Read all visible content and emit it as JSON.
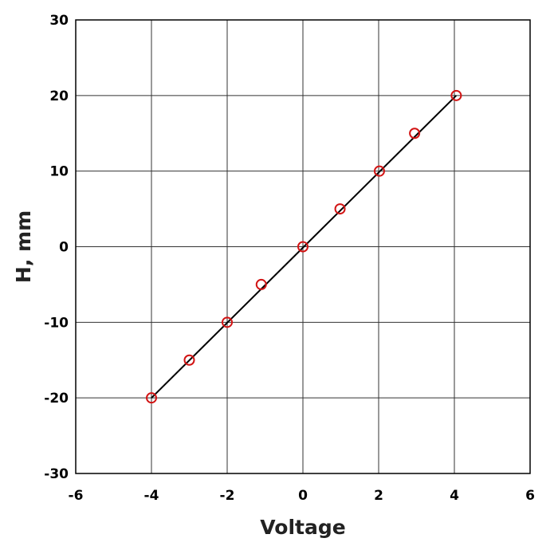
{
  "chart_data": {
    "type": "scatter",
    "title": "",
    "xlabel": "Voltage",
    "ylabel": "H, mm",
    "xlim": [
      -6,
      6
    ],
    "ylim": [
      -30,
      30
    ],
    "x_ticks": [
      -6,
      -4,
      -2,
      0,
      2,
      4,
      6
    ],
    "y_ticks": [
      -30,
      -20,
      -10,
      0,
      10,
      20,
      30
    ],
    "x_tick_labels": [
      "-6",
      "-4",
      "-2",
      "0",
      "2",
      "4",
      "6"
    ],
    "y_tick_labels": [
      "-30",
      "-20",
      "-10",
      "0",
      "10",
      "20",
      "30"
    ],
    "grid": true,
    "legend": "none",
    "series": [
      {
        "kind": "markers",
        "marker": "open-circle",
        "color": "#d21414",
        "x": [
          -4,
          -3,
          -2,
          -1.1,
          0,
          0.98,
          2.02,
          2.95,
          4.05
        ],
        "y": [
          -20,
          -15,
          -10,
          -5,
          0,
          5,
          10,
          15,
          20
        ]
      },
      {
        "kind": "fit-line",
        "color": "#000000",
        "x": [
          -4,
          4.05
        ],
        "y": [
          -20,
          20
        ]
      }
    ]
  }
}
